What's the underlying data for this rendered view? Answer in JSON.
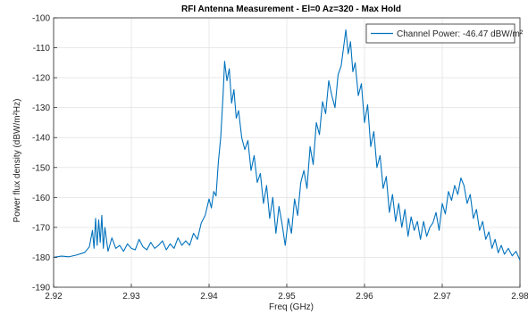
{
  "chart_data": {
    "type": "line",
    "title": "RFI Antenna Measurement - El=0 Az=320 - Max Hold",
    "xlabel": "Freq (GHz)",
    "ylabel": "Power flux density (dBW/m²Hz)",
    "xlim": [
      2.92,
      2.98
    ],
    "ylim": [
      -190,
      -100
    ],
    "xticks": [
      2.92,
      2.93,
      2.94,
      2.95,
      2.96,
      2.97,
      2.98
    ],
    "xtick_labels": [
      "2.92",
      "2.93",
      "2.94",
      "2.95",
      "2.96",
      "2.97",
      "2.98"
    ],
    "yticks": [
      -190,
      -180,
      -170,
      -160,
      -150,
      -140,
      -130,
      -120,
      -110,
      -100
    ],
    "ytick_labels": [
      "-190",
      "-180",
      "-170",
      "-160",
      "-150",
      "-140",
      "-130",
      "-120",
      "-110",
      "-100"
    ],
    "grid": true,
    "legend_position": "top-right",
    "series": [
      {
        "name": "Channel Power: -46.47 dBW/m²",
        "color": "#0072BD",
        "points": [
          [
            2.92,
            -180.0
          ],
          [
            2.921,
            -179.6
          ],
          [
            2.922,
            -179.8
          ],
          [
            2.923,
            -179.2
          ],
          [
            2.924,
            -178.4
          ],
          [
            2.9246,
            -176.5
          ],
          [
            2.925,
            -171.0
          ],
          [
            2.9252,
            -177.0
          ],
          [
            2.9254,
            -167.0
          ],
          [
            2.9256,
            -176.0
          ],
          [
            2.9258,
            -167.5
          ],
          [
            2.926,
            -175.0
          ],
          [
            2.9262,
            -166.0
          ],
          [
            2.9264,
            -177.0
          ],
          [
            2.9266,
            -170.0
          ],
          [
            2.927,
            -178.0
          ],
          [
            2.9275,
            -173.5
          ],
          [
            2.928,
            -177.0
          ],
          [
            2.9285,
            -176.0
          ],
          [
            2.929,
            -178.0
          ],
          [
            2.9295,
            -175.5
          ],
          [
            2.93,
            -177.0
          ],
          [
            2.9305,
            -177.5
          ],
          [
            2.931,
            -174.0
          ],
          [
            2.9315,
            -176.5
          ],
          [
            2.932,
            -177.5
          ],
          [
            2.9325,
            -175.0
          ],
          [
            2.933,
            -177.0
          ],
          [
            2.9335,
            -176.0
          ],
          [
            2.934,
            -174.5
          ],
          [
            2.9345,
            -177.5
          ],
          [
            2.935,
            -175.5
          ],
          [
            2.9355,
            -177.0
          ],
          [
            2.936,
            -173.5
          ],
          [
            2.9365,
            -176.0
          ],
          [
            2.937,
            -174.5
          ],
          [
            2.9375,
            -176.0
          ],
          [
            2.938,
            -172.0
          ],
          [
            2.9385,
            -174.0
          ],
          [
            2.939,
            -168.5
          ],
          [
            2.9395,
            -166.0
          ],
          [
            2.94,
            -160.5
          ],
          [
            2.9403,
            -163.5
          ],
          [
            2.9406,
            -158.0
          ],
          [
            2.9409,
            -159.5
          ],
          [
            2.9412,
            -148.0
          ],
          [
            2.9415,
            -140.0
          ],
          [
            2.9418,
            -126.0
          ],
          [
            2.942,
            -114.5
          ],
          [
            2.9423,
            -121.0
          ],
          [
            2.9426,
            -117.0
          ],
          [
            2.9429,
            -128.5
          ],
          [
            2.9432,
            -124.0
          ],
          [
            2.9435,
            -133.5
          ],
          [
            2.9438,
            -131.0
          ],
          [
            2.9442,
            -140.0
          ],
          [
            2.9446,
            -144.0
          ],
          [
            2.945,
            -141.0
          ],
          [
            2.9454,
            -151.0
          ],
          [
            2.9458,
            -146.0
          ],
          [
            2.9462,
            -155.0
          ],
          [
            2.9466,
            -152.0
          ],
          [
            2.947,
            -162.0
          ],
          [
            2.9474,
            -156.0
          ],
          [
            2.9478,
            -167.0
          ],
          [
            2.9482,
            -160.0
          ],
          [
            2.9486,
            -172.0
          ],
          [
            2.949,
            -163.0
          ],
          [
            2.9494,
            -169.0
          ],
          [
            2.9498,
            -176.0
          ],
          [
            2.9502,
            -167.0
          ],
          [
            2.9506,
            -172.0
          ],
          [
            2.951,
            -160.5
          ],
          [
            2.9514,
            -166.0
          ],
          [
            2.9518,
            -155.0
          ],
          [
            2.9522,
            -151.0
          ],
          [
            2.9526,
            -157.0
          ],
          [
            2.953,
            -143.0
          ],
          [
            2.9534,
            -149.0
          ],
          [
            2.9538,
            -135.0
          ],
          [
            2.9542,
            -139.0
          ],
          [
            2.9546,
            -128.0
          ],
          [
            2.955,
            -132.0
          ],
          [
            2.9554,
            -121.0
          ],
          [
            2.9558,
            -126.0
          ],
          [
            2.9562,
            -130.0
          ],
          [
            2.9566,
            -119.0
          ],
          [
            2.957,
            -116.0
          ],
          [
            2.9573,
            -110.0
          ],
          [
            2.9576,
            -104.0
          ],
          [
            2.9579,
            -112.0
          ],
          [
            2.9582,
            -108.0
          ],
          [
            2.9585,
            -118.0
          ],
          [
            2.9588,
            -115.0
          ],
          [
            2.9592,
            -126.0
          ],
          [
            2.9596,
            -122.0
          ],
          [
            2.96,
            -135.0
          ],
          [
            2.9604,
            -129.0
          ],
          [
            2.9608,
            -143.0
          ],
          [
            2.9612,
            -138.0
          ],
          [
            2.9616,
            -150.0
          ],
          [
            2.962,
            -146.0
          ],
          [
            2.9624,
            -157.0
          ],
          [
            2.9628,
            -153.0
          ],
          [
            2.9632,
            -165.0
          ],
          [
            2.9636,
            -159.0
          ],
          [
            2.964,
            -168.0
          ],
          [
            2.9644,
            -162.0
          ],
          [
            2.9648,
            -170.0
          ],
          [
            2.9652,
            -164.0
          ],
          [
            2.9656,
            -173.0
          ],
          [
            2.966,
            -166.5
          ],
          [
            2.9664,
            -171.0
          ],
          [
            2.9668,
            -168.0
          ],
          [
            2.9672,
            -174.0
          ],
          [
            2.9676,
            -168.0
          ],
          [
            2.968,
            -173.0
          ],
          [
            2.9684,
            -170.0
          ],
          [
            2.9688,
            -168.5
          ],
          [
            2.9692,
            -165.0
          ],
          [
            2.9696,
            -171.0
          ],
          [
            2.97,
            -162.0
          ],
          [
            2.9704,
            -165.5
          ],
          [
            2.9708,
            -158.0
          ],
          [
            2.9712,
            -161.0
          ],
          [
            2.9716,
            -156.0
          ],
          [
            2.972,
            -159.0
          ],
          [
            2.9724,
            -153.5
          ],
          [
            2.9728,
            -156.0
          ],
          [
            2.9732,
            -162.0
          ],
          [
            2.9736,
            -159.0
          ],
          [
            2.974,
            -167.0
          ],
          [
            2.9744,
            -164.0
          ],
          [
            2.9748,
            -171.0
          ],
          [
            2.9752,
            -168.0
          ],
          [
            2.9756,
            -174.0
          ],
          [
            2.976,
            -171.5
          ],
          [
            2.9764,
            -177.0
          ],
          [
            2.9768,
            -174.0
          ],
          [
            2.9772,
            -178.5
          ],
          [
            2.9776,
            -176.0
          ],
          [
            2.978,
            -179.0
          ],
          [
            2.9785,
            -177.0
          ],
          [
            2.979,
            -179.5
          ],
          [
            2.9795,
            -178.0
          ],
          [
            2.98,
            -181.0
          ]
        ]
      }
    ]
  },
  "colors": {
    "line": "#0072BD",
    "grid": "#dcdcdc",
    "axis": "#262626"
  }
}
